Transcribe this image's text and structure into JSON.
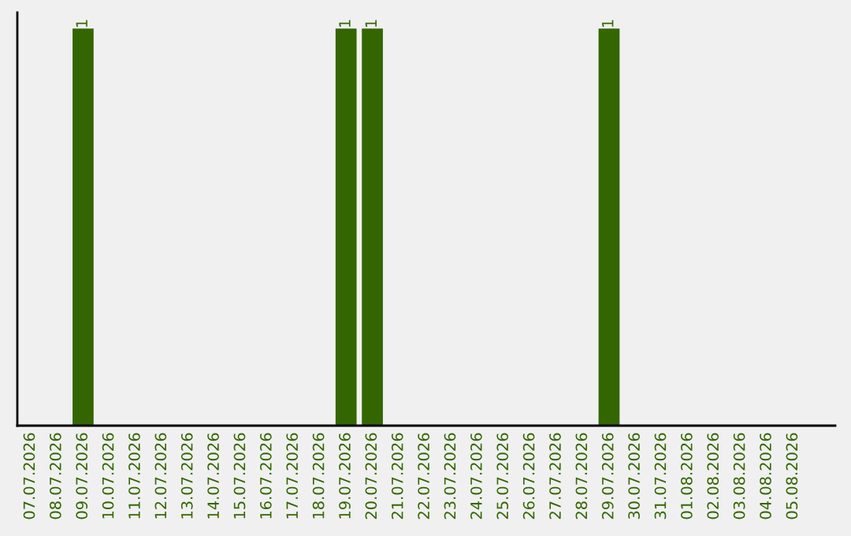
{
  "chart_data": {
    "type": "bar",
    "categories": [
      "07.07.2026",
      "08.07.2026",
      "09.07.2026",
      "10.07.2026",
      "11.07.2026",
      "12.07.2026",
      "13.07.2026",
      "14.07.2026",
      "15.07.2026",
      "16.07.2026",
      "17.07.2026",
      "18.07.2026",
      "19.07.2026",
      "20.07.2026",
      "21.07.2026",
      "22.07.2026",
      "23.07.2026",
      "24.07.2026",
      "25.07.2026",
      "26.07.2026",
      "27.07.2026",
      "28.07.2026",
      "29.07.2026",
      "30.07.2026",
      "31.07.2026",
      "01.08.2026",
      "02.08.2026",
      "03.08.2026",
      "04.08.2026",
      "05.08.2026"
    ],
    "values": [
      0,
      0,
      1,
      0,
      0,
      0,
      0,
      0,
      0,
      0,
      0,
      0,
      1,
      1,
      0,
      0,
      0,
      0,
      0,
      0,
      0,
      0,
      1,
      0,
      0,
      0,
      0,
      0,
      0,
      0
    ],
    "value_labels": [
      null,
      null,
      "1",
      null,
      null,
      null,
      null,
      null,
      null,
      null,
      null,
      null,
      "1",
      "1",
      null,
      null,
      null,
      null,
      null,
      null,
      null,
      null,
      "1",
      null,
      null,
      null,
      null,
      null,
      null,
      null
    ],
    "color": "#336600",
    "grid": false,
    "legend": false,
    "tick_labels": "x"
  }
}
